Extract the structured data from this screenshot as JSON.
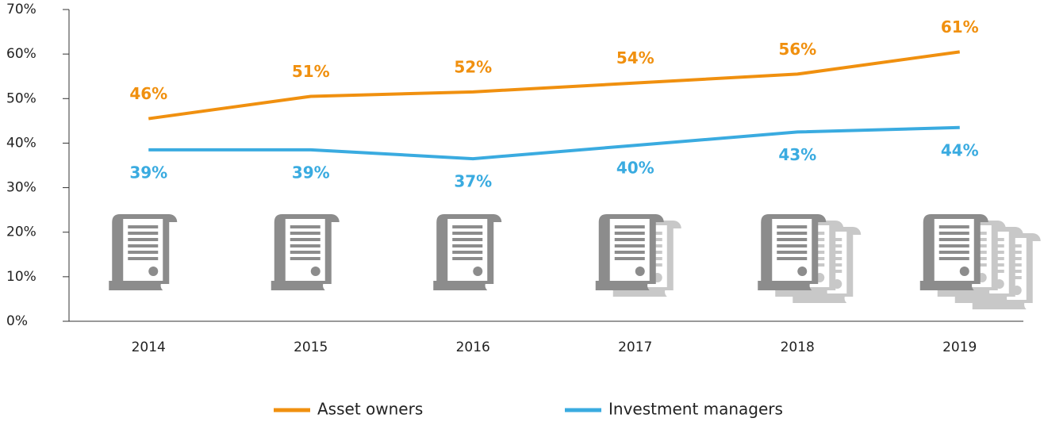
{
  "chart_data": {
    "type": "line",
    "categories": [
      "2014",
      "2015",
      "2016",
      "2017",
      "2018",
      "2019"
    ],
    "series": [
      {
        "name": "Asset owners",
        "color": "#f0900f",
        "values": [
          45.5,
          50.5,
          51.5,
          53.5,
          55.5,
          60.5
        ],
        "value_labels": [
          "46%",
          "51%",
          "52%",
          "54%",
          "56%",
          "61%"
        ]
      },
      {
        "name": "Investment managers",
        "color": "#3aabe0",
        "values": [
          38.5,
          38.5,
          36.5,
          39.5,
          42.5,
          43.5
        ],
        "value_labels": [
          "39%",
          "39%",
          "37%",
          "40%",
          "43%",
          "44%"
        ]
      }
    ],
    "ylim": [
      0,
      70
    ],
    "yticks": [
      {
        "value": 0,
        "label": "0%"
      },
      {
        "value": 10,
        "label": "10%"
      },
      {
        "value": 20,
        "label": "20%"
      },
      {
        "value": 30,
        "label": "30%"
      },
      {
        "value": 40,
        "label": "40%"
      },
      {
        "value": 50,
        "label": "50%"
      },
      {
        "value": 60,
        "label": "60%"
      },
      {
        "value": 70,
        "label": "70%"
      }
    ],
    "legend": "bottom"
  }
}
